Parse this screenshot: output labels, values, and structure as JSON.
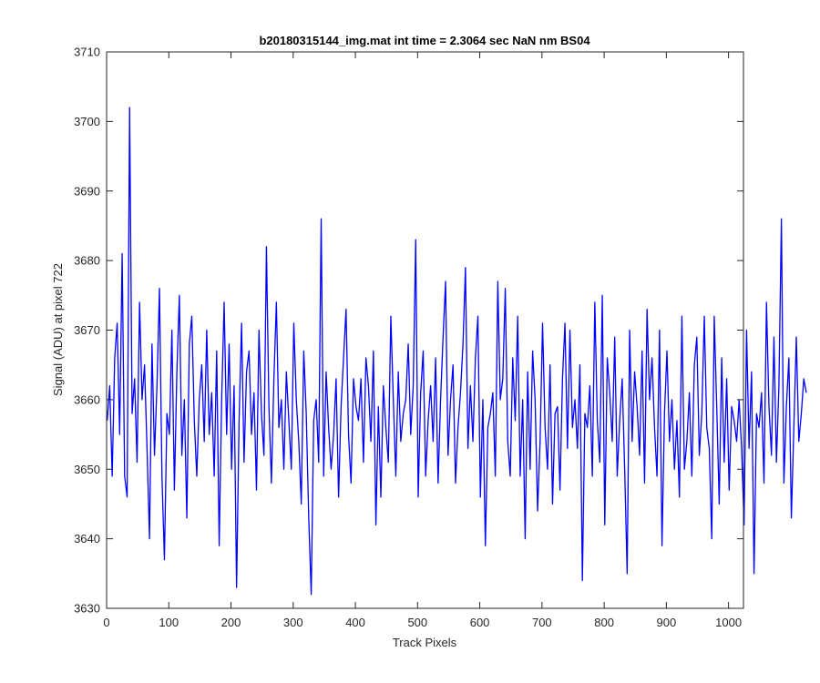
{
  "chart_data": {
    "type": "line",
    "title": "b20180315144_img.mat int time = 2.3064 sec  NaN nm BS04",
    "xlabel": "Track Pixels",
    "ylabel": "Signal (ADU) at pixel 722",
    "xlim": [
      0,
      1024
    ],
    "ylim": [
      3630,
      3710
    ],
    "xticks": [
      0,
      100,
      200,
      300,
      400,
      500,
      600,
      700,
      800,
      900,
      1000
    ],
    "yticks": [
      3630,
      3640,
      3650,
      3660,
      3670,
      3680,
      3690,
      3700,
      3710
    ],
    "grid": false,
    "legend": "none",
    "line_color": "#0000ff",
    "series": [
      {
        "x_start": 1,
        "x_step": 4,
        "values": [
          3657,
          3662,
          3649,
          3666,
          3671,
          3655,
          3681,
          3649,
          3646,
          3702,
          3658,
          3663,
          3651,
          3674,
          3660,
          3665,
          3653,
          3640,
          3668,
          3652,
          3662,
          3676,
          3649,
          3637,
          3658,
          3655,
          3670,
          3647,
          3664,
          3675,
          3652,
          3660,
          3643,
          3668,
          3672,
          3657,
          3649,
          3660,
          3665,
          3654,
          3670,
          3655,
          3661,
          3649,
          3667,
          3639,
          3660,
          3674,
          3655,
          3668,
          3650,
          3662,
          3633,
          3657,
          3671,
          3651,
          3664,
          3667,
          3655,
          3661,
          3647,
          3670,
          3658,
          3652,
          3682,
          3659,
          3648,
          3663,
          3674,
          3656,
          3660,
          3650,
          3664,
          3657,
          3650,
          3671,
          3660,
          3654,
          3645,
          3667,
          3658,
          3643,
          3632,
          3657,
          3660,
          3651,
          3686,
          3649,
          3664,
          3656,
          3650,
          3655,
          3663,
          3646,
          3659,
          3666,
          3673,
          3655,
          3648,
          3663,
          3659,
          3657,
          3663,
          3651,
          3666,
          3662,
          3654,
          3667,
          3642,
          3659,
          3646,
          3662,
          3656,
          3651,
          3672,
          3660,
          3649,
          3664,
          3654,
          3658,
          3660,
          3668,
          3655,
          3662,
          3683,
          3646,
          3661,
          3667,
          3649,
          3657,
          3662,
          3654,
          3666,
          3648,
          3660,
          3669,
          3677,
          3652,
          3660,
          3665,
          3648,
          3656,
          3661,
          3668,
          3679,
          3653,
          3662,
          3654,
          3666,
          3672,
          3646,
          3660,
          3639,
          3656,
          3658,
          3661,
          3649,
          3677,
          3660,
          3663,
          3676,
          3654,
          3649,
          3666,
          3657,
          3672,
          3649,
          3660,
          3640,
          3664,
          3650,
          3667,
          3660,
          3644,
          3654,
          3671,
          3656,
          3650,
          3665,
          3645,
          3658,
          3659,
          3647,
          3663,
          3671,
          3653,
          3670,
          3656,
          3660,
          3653,
          3665,
          3634,
          3658,
          3656,
          3662,
          3649,
          3674,
          3657,
          3651,
          3675,
          3642,
          3666,
          3661,
          3654,
          3669,
          3649,
          3657,
          3663,
          3650,
          3635,
          3670,
          3654,
          3664,
          3659,
          3652,
          3667,
          3648,
          3673,
          3660,
          3666,
          3656,
          3649,
          3670,
          3639,
          3658,
          3667,
          3654,
          3660,
          3650,
          3657,
          3646,
          3672,
          3650,
          3654,
          3661,
          3649,
          3665,
          3669,
          3652,
          3658,
          3672,
          3656,
          3653,
          3640,
          3672,
          3659,
          3645,
          3666,
          3651,
          3663,
          3647,
          3659,
          3657,
          3654,
          3660,
          3653,
          3642,
          3670,
          3653,
          3664,
          3635,
          3658,
          3656,
          3661,
          3648,
          3674,
          3659,
          3652,
          3669,
          3651,
          3662,
          3686,
          3648,
          3659,
          3666,
          3643,
          3656,
          3669,
          3654,
          3658,
          3663,
          3661
        ]
      }
    ]
  }
}
